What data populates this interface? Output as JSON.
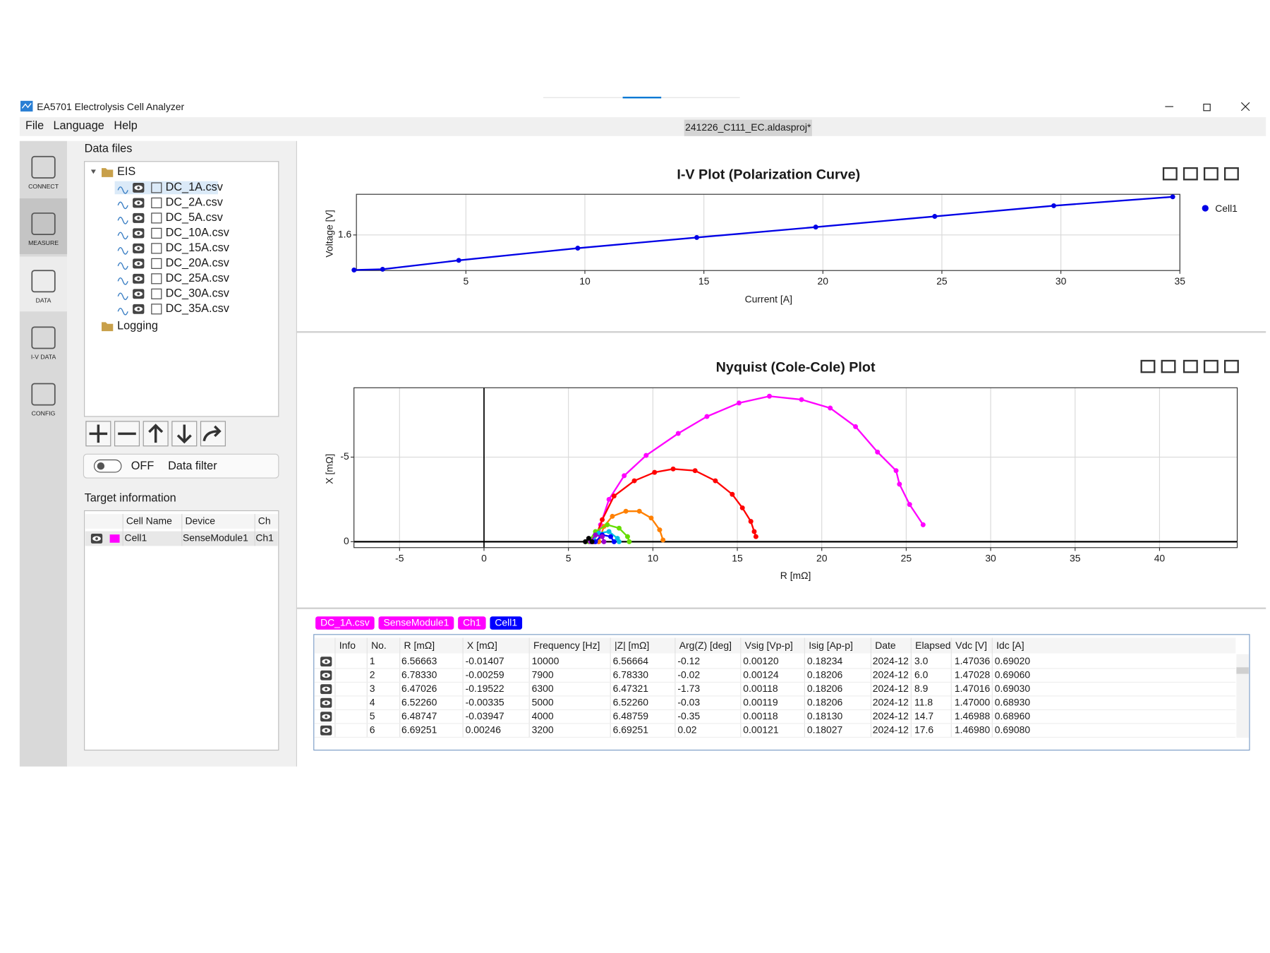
{
  "window": {
    "title": "EA5701 Electrolysis Cell Analyzer"
  },
  "menu": [
    "File",
    "Language",
    "Help"
  ],
  "project_tab": "241226_C111_EC.aldasproj*",
  "sidebar": [
    "CONNECT",
    "MEASURE",
    "DATA",
    "I-V DATA",
    "CONFIG"
  ],
  "data_files": {
    "title": "Data files",
    "folders": [
      "EIS",
      "Logging"
    ],
    "files": [
      "DC_1A.csv",
      "DC_2A.csv",
      "DC_5A.csv",
      "DC_10A.csv",
      "DC_15A.csv",
      "DC_20A.csv",
      "DC_25A.csv",
      "DC_30A.csv",
      "DC_35A.csv"
    ]
  },
  "filter": {
    "state": "OFF",
    "label": "Data filter"
  },
  "target_info": {
    "title": "Target information",
    "columns": [
      "Cell Name",
      "Device",
      "Ch"
    ],
    "rows": [
      [
        "Cell1",
        "SenseModule1",
        "Ch1"
      ]
    ],
    "row_color": "#ff00ff"
  },
  "iv_plot": {
    "type": "line",
    "title": "I-V Plot (Polarization Curve)",
    "x_label": "Current [A]",
    "y_label": "Voltage [V]",
    "xlim": [
      0.4,
      35
    ],
    "ylim": [
      1.46,
      1.76
    ],
    "xticks": [
      5,
      10,
      15,
      20,
      25,
      30,
      35
    ],
    "yticks": [
      1.6
    ],
    "grid": true,
    "legend": "right",
    "series": [
      {
        "name": "Cell1",
        "color": "#0000e6",
        "x": [
          0.3,
          1.5,
          4.7,
          9.7,
          14.7,
          19.7,
          24.7,
          29.7,
          34.7
        ],
        "values": [
          1.462,
          1.465,
          1.5,
          1.548,
          1.59,
          1.631,
          1.673,
          1.715,
          1.75
        ]
      }
    ]
  },
  "nyquist_plot": {
    "type": "scatter",
    "title": "Nyquist (Cole-Cole) Plot",
    "x_label": "R [mΩ]",
    "y_label": "X [mΩ]",
    "xlim": [
      -7.7,
      44.6
    ],
    "ylim": [
      0.35,
      -9.1
    ],
    "xticks": [
      -5,
      0,
      5,
      10,
      15,
      20,
      25,
      30,
      35,
      40
    ],
    "yticks": [
      -5,
      0
    ],
    "grid": true,
    "series": [
      {
        "color": "#ff00ff",
        "x": [
          6.57,
          6.78,
          6.9,
          7.4,
          8.3,
          9.6,
          11.5,
          13.2,
          15.1,
          16.9,
          18.8,
          20.5,
          22.0,
          23.3,
          24.4,
          24.6,
          25.2,
          26.0
        ],
        "values": [
          -0.01,
          0,
          -1.0,
          -2.5,
          -3.9,
          -5.1,
          -6.4,
          -7.4,
          -8.2,
          -8.6,
          -8.4,
          -7.9,
          -6.8,
          -5.3,
          -4.2,
          -3.4,
          -2.2,
          -1.0
        ]
      },
      {
        "color": "#ff0000",
        "x": [
          6.5,
          7.0,
          7.7,
          8.9,
          10.1,
          11.2,
          12.5,
          13.7,
          14.7,
          15.3,
          15.8,
          16.0,
          16.1
        ],
        "values": [
          0,
          -1.3,
          -2.7,
          -3.6,
          -4.1,
          -4.3,
          -4.2,
          -3.6,
          -2.8,
          -2.0,
          -1.2,
          -0.6,
          -0.3
        ]
      },
      {
        "color": "#ff8000",
        "x": [
          6.8,
          7.1,
          7.6,
          8.4,
          9.2,
          9.9,
          10.4,
          10.6
        ],
        "values": [
          0,
          -0.9,
          -1.5,
          -1.8,
          -1.8,
          -1.4,
          -0.7,
          -0.1
        ]
      },
      {
        "color": "#66dd00",
        "x": [
          6.2,
          6.6,
          7.3,
          8.0,
          8.5,
          8.6
        ],
        "values": [
          0,
          -0.6,
          -1.0,
          -0.8,
          -0.3,
          0
        ]
      },
      {
        "color": "#00c0e0",
        "x": [
          6.4,
          6.8,
          7.4,
          7.9,
          8.0
        ],
        "values": [
          0,
          -0.5,
          -0.6,
          -0.2,
          0
        ]
      },
      {
        "color": "#0000ff",
        "x": [
          6.6,
          7.0,
          7.5,
          7.7
        ],
        "values": [
          0,
          -0.4,
          -0.3,
          0
        ]
      },
      {
        "color": "#9900cc",
        "x": [
          6.3,
          6.6,
          7.0,
          7.1
        ],
        "values": [
          0,
          -0.4,
          -0.3,
          0
        ]
      },
      {
        "color": "#000000",
        "x": [
          6.0,
          6.2,
          6.4
        ],
        "values": [
          0,
          -0.2,
          0
        ]
      }
    ]
  },
  "tags": [
    {
      "label": "DC_1A.csv",
      "color": "#ff00ff"
    },
    {
      "label": "SenseModule1",
      "color": "#ff00ff"
    },
    {
      "label": "Ch1",
      "color": "#ff00ff"
    },
    {
      "label": "Cell1",
      "color": "#0000ff"
    }
  ],
  "table": {
    "columns": [
      "Info",
      "No.",
      "R [mΩ]",
      "X [mΩ]",
      "Frequency [Hz]",
      "|Z| [mΩ]",
      "Arg(Z) [deg]",
      "Vsig [Vp-p]",
      "Isig [Ap-p]",
      "Date",
      "Elapsed",
      "Vdc [V]",
      "Idc [A]"
    ],
    "rows": [
      [
        "1",
        "6.56663",
        "-0.01407",
        "10000",
        "6.56664",
        "-0.12",
        "0.00120",
        "0.18234",
        "2024-12",
        "3.0",
        "1.47036",
        "0.69020"
      ],
      [
        "2",
        "6.78330",
        "-0.00259",
        "7900",
        "6.78330",
        "-0.02",
        "0.00124",
        "0.18206",
        "2024-12",
        "6.0",
        "1.47028",
        "0.69060"
      ],
      [
        "3",
        "6.47026",
        "-0.19522",
        "6300",
        "6.47321",
        "-1.73",
        "0.00118",
        "0.18206",
        "2024-12",
        "8.9",
        "1.47016",
        "0.69030"
      ],
      [
        "4",
        "6.52260",
        "-0.00335",
        "5000",
        "6.52260",
        "-0.03",
        "0.00119",
        "0.18206",
        "2024-12",
        "11.8",
        "1.47000",
        "0.68930"
      ],
      [
        "5",
        "6.48747",
        "-0.03947",
        "4000",
        "6.48759",
        "-0.35",
        "0.00118",
        "0.18130",
        "2024-12",
        "14.7",
        "1.46988",
        "0.68960"
      ],
      [
        "6",
        "6.69251",
        "0.00246",
        "3200",
        "6.69251",
        "0.02",
        "0.00121",
        "0.18027",
        "2024-12",
        "17.6",
        "1.46980",
        "0.69080"
      ]
    ]
  }
}
